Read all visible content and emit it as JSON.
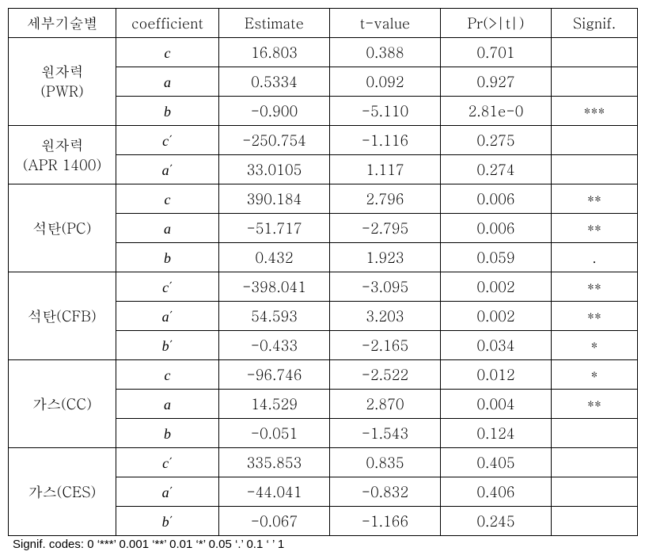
{
  "headers": {
    "tech": "세부기술별",
    "coef": "coefficient",
    "est": "Estimate",
    "tval": "t-value",
    "pr": "Pr(>|t|)",
    "sig": "Signif."
  },
  "groups": [
    {
      "label": "원자력\n(PWR)",
      "rows": [
        {
          "coef": "c",
          "est": "16.803",
          "tval": "0.388",
          "pr": "0.701",
          "sig": ""
        },
        {
          "coef": "a",
          "est": "0.5334",
          "tval": "0.092",
          "pr": "0.927",
          "sig": ""
        },
        {
          "coef": "b",
          "est": "-0.900",
          "tval": "-5.110",
          "pr": "2.81e-0",
          "sig": "***"
        }
      ]
    },
    {
      "label": "원자력\n(APR 1400)",
      "rows": [
        {
          "coef": "c′",
          "est": "-250.754",
          "tval": "-1.116",
          "pr": "0.275",
          "sig": ""
        },
        {
          "coef": "a′",
          "est": "33.0105",
          "tval": "1.117",
          "pr": "0.274",
          "sig": ""
        }
      ]
    },
    {
      "label": "석탄(PC)",
      "rows": [
        {
          "coef": "c",
          "est": "390.184",
          "tval": "2.796",
          "pr": "0.006",
          "sig": "**"
        },
        {
          "coef": "a",
          "est": "-51.717",
          "tval": "-2.795",
          "pr": "0.006",
          "sig": "**"
        },
        {
          "coef": "b",
          "est": "0.432",
          "tval": "1.923",
          "pr": "0.059",
          "sig": "."
        }
      ]
    },
    {
      "label": "석탄(CFB)",
      "rows": [
        {
          "coef": "c′",
          "est": "-398.041",
          "tval": "-3.095",
          "pr": "0.002",
          "sig": "**"
        },
        {
          "coef": "a′",
          "est": "54.593",
          "tval": "3.203",
          "pr": "0.002",
          "sig": "**"
        },
        {
          "coef": "b′",
          "est": "-0.433",
          "tval": "-2.165",
          "pr": "0.034",
          "sig": "*"
        }
      ]
    },
    {
      "label": "가스(CC)",
      "rows": [
        {
          "coef": "c",
          "est": "-96.746",
          "tval": "-2.522",
          "pr": "0.012",
          "sig": "*"
        },
        {
          "coef": "a",
          "est": "14.529",
          "tval": "2.870",
          "pr": "0.004",
          "sig": "**"
        },
        {
          "coef": "b",
          "est": "-0.051",
          "tval": "-1.543",
          "pr": "0.124",
          "sig": ""
        }
      ]
    },
    {
      "label": "가스(CES)",
      "rows": [
        {
          "coef": "c′",
          "est": "335.853",
          "tval": "0.835",
          "pr": "0.405",
          "sig": ""
        },
        {
          "coef": "a′",
          "est": "-44.041",
          "tval": "-0.832",
          "pr": "0.406",
          "sig": ""
        },
        {
          "coef": "b′",
          "est": "-0.067",
          "tval": "-1.166",
          "pr": "0.245",
          "sig": ""
        }
      ]
    }
  ],
  "footnote": "Signif. codes:   0  ‘***’   0.001  ‘**’   0.01  ‘*’   0.05  ‘.’   0.1  ‘ ’   1"
}
